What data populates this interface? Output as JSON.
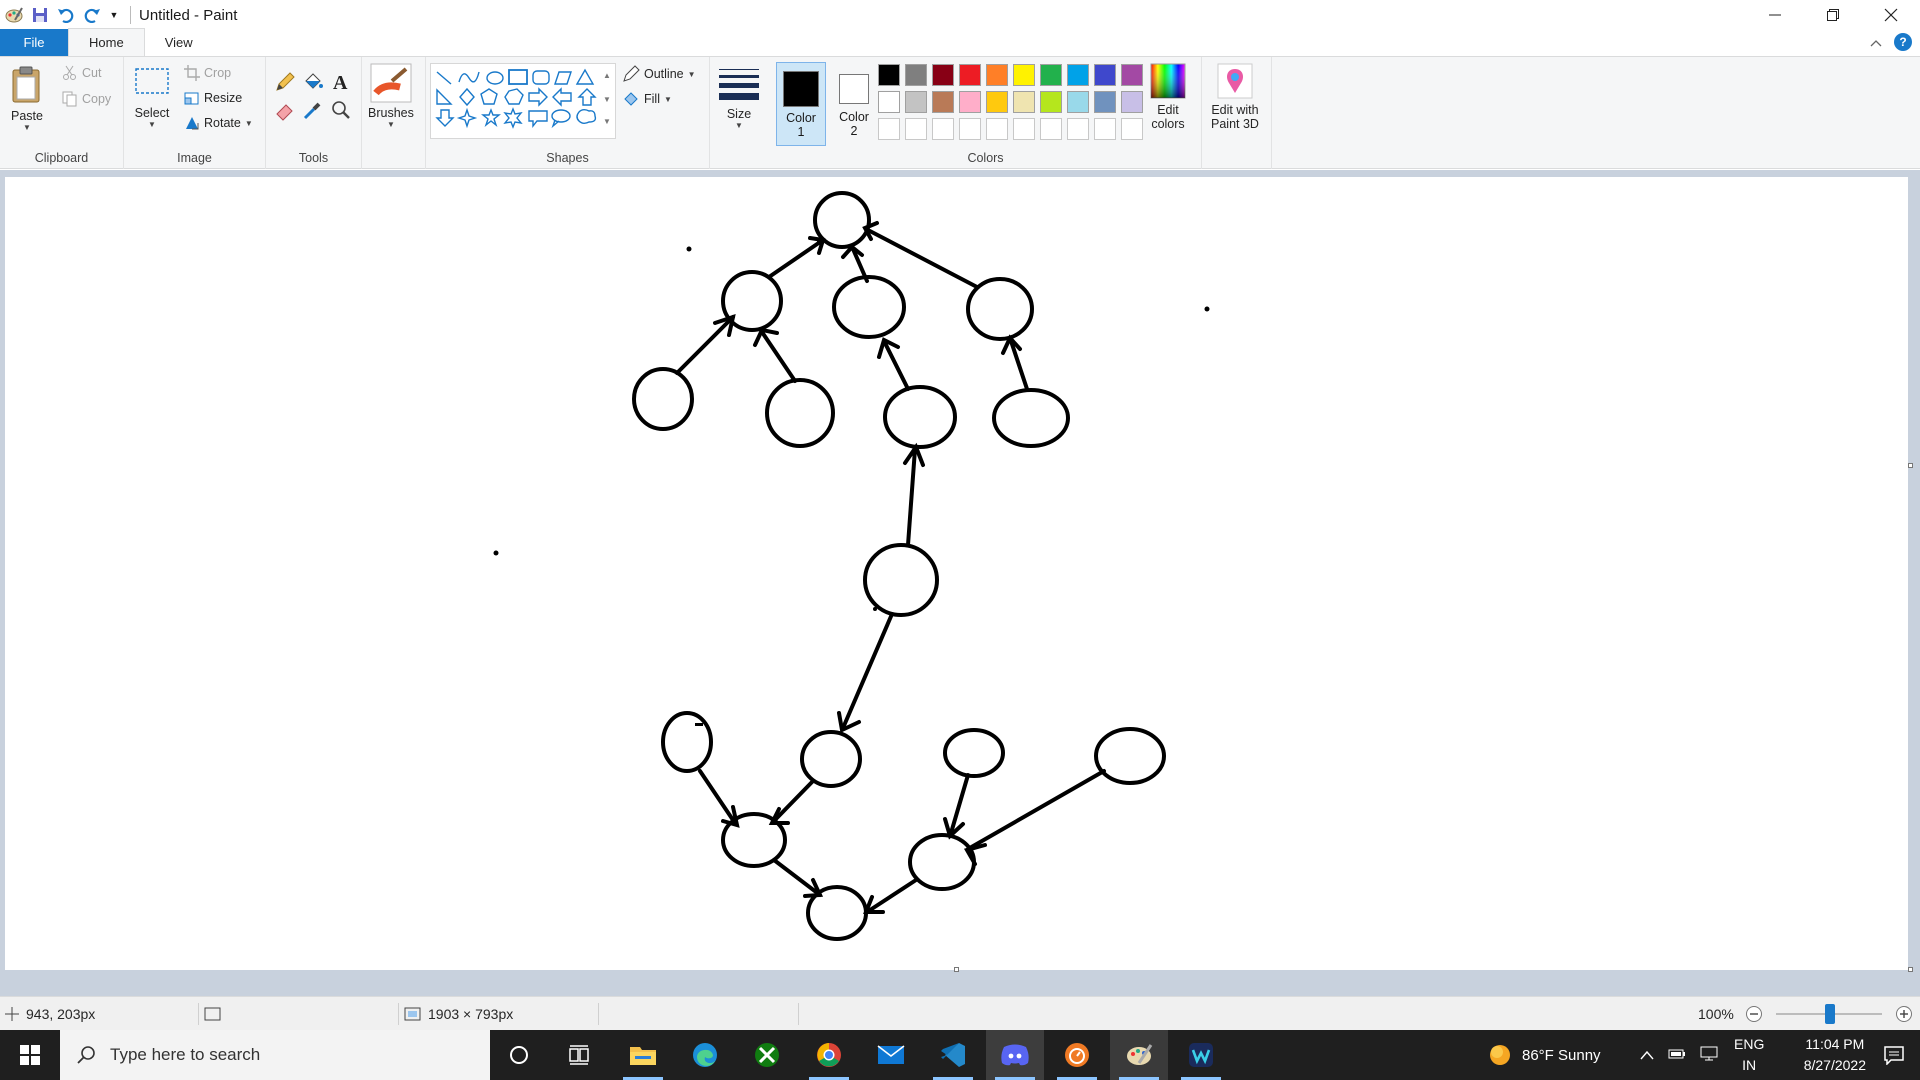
{
  "window": {
    "title": "Untitled - Paint"
  },
  "tabs": {
    "file": "File",
    "home": "Home",
    "view": "View"
  },
  "ribbon": {
    "clipboard": {
      "label": "Clipboard",
      "paste": "Paste",
      "cut": "Cut",
      "copy": "Copy"
    },
    "image": {
      "label": "Image",
      "select": "Select",
      "crop": "Crop",
      "resize": "Resize",
      "rotate": "Rotate"
    },
    "tools": {
      "label": "Tools"
    },
    "brushes": {
      "label": "Brushes"
    },
    "shapes": {
      "label": "Shapes",
      "outline": "Outline",
      "fill": "Fill"
    },
    "size": {
      "label": "Size"
    },
    "colors": {
      "label": "Colors",
      "color1": "Color\n1",
      "color1_a": "Color",
      "color1_b": "1",
      "color2_a": "Color",
      "color2_b": "2",
      "edit_a": "Edit",
      "edit_b": "colors",
      "color1_value": "#000000",
      "color2_value": "#ffffff",
      "palette_row1": [
        "#000000",
        "#7f7f7f",
        "#880015",
        "#ed1c24",
        "#ff7f27",
        "#fff200",
        "#22b14c",
        "#00a2e8",
        "#3f48cc",
        "#a349a4"
      ],
      "palette_row2": [
        "#ffffff",
        "#c3c3c3",
        "#b97a57",
        "#ffaec9",
        "#ffc90e",
        "#efe4b0",
        "#b5e61d",
        "#99d9ea",
        "#7092be",
        "#c8bfe7"
      ]
    },
    "paint3d": {
      "line1": "Edit with",
      "line2": "Paint 3D"
    }
  },
  "statusbar": {
    "cursor_pos": "943, 203px",
    "canvas_size": "1903 × 793px",
    "zoom": "100%"
  },
  "taskbar": {
    "search_placeholder": "Type here to search",
    "weather": "86°F  Sunny",
    "lang1": "ENG",
    "lang2": "IN",
    "time": "11:04 PM",
    "date": "8/27/2022"
  }
}
